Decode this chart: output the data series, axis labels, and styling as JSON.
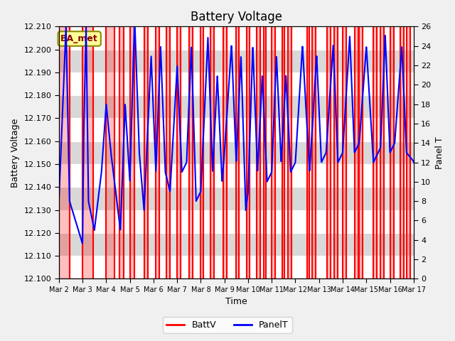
{
  "title": "Battery Voltage",
  "xlabel": "Time",
  "ylabel_left": "Battery Voltage",
  "ylabel_right": "Panel T",
  "ylim_left": [
    12.1,
    12.21
  ],
  "ylim_right": [
    0,
    26
  ],
  "yticks_left": [
    12.1,
    12.11,
    12.12,
    12.13,
    12.14,
    12.15,
    12.16,
    12.17,
    12.18,
    12.19,
    12.2,
    12.21
  ],
  "yticks_right": [
    0,
    2,
    4,
    6,
    8,
    10,
    12,
    14,
    16,
    18,
    20,
    22,
    24,
    26
  ],
  "xtick_labels": [
    "Mar 2",
    "Mar 3",
    "Mar 4",
    "Mar 5",
    "Mar 6",
    "Mar 7",
    "Mar 8",
    "Mar 9",
    "Mar 10",
    "Mar 11",
    "Mar 12",
    "Mar 13",
    "Mar 14",
    "Mar 15",
    "Mar 16",
    "Mar 17"
  ],
  "annotation_text": "BA_met",
  "annotation_color": "#8B0000",
  "annotation_bg": "#FFFF99",
  "batt_color": "#FF0000",
  "panel_color": "#0000FF",
  "bg_color": "#D8D8D8",
  "band_color": "#EAEAEA",
  "grid_color": "#FFFFFF",
  "legend_batt": "BattV",
  "legend_panel": "PanelT",
  "batt_high_intervals": [
    [
      0.0,
      0.45
    ],
    [
      1.0,
      1.45
    ],
    [
      2.0,
      2.35
    ],
    [
      2.55,
      2.75
    ],
    [
      3.0,
      3.2
    ],
    [
      3.6,
      3.75
    ],
    [
      4.1,
      4.25
    ],
    [
      4.55,
      4.7
    ],
    [
      5.0,
      5.15
    ],
    [
      5.5,
      5.65
    ],
    [
      6.0,
      6.1
    ],
    [
      6.4,
      6.55
    ],
    [
      6.95,
      7.1
    ],
    [
      7.5,
      7.6
    ],
    [
      7.95,
      8.05
    ],
    [
      8.35,
      8.5
    ],
    [
      8.65,
      8.75
    ],
    [
      9.0,
      9.15
    ],
    [
      9.45,
      9.55
    ],
    [
      9.7,
      9.85
    ],
    [
      10.5,
      10.6
    ],
    [
      10.7,
      10.85
    ],
    [
      11.35,
      11.5
    ],
    [
      11.65,
      11.8
    ],
    [
      12.0,
      12.15
    ],
    [
      12.5,
      12.65
    ],
    [
      12.7,
      12.85
    ],
    [
      13.3,
      13.45
    ],
    [
      13.6,
      13.75
    ],
    [
      14.0,
      14.15
    ],
    [
      14.45,
      14.6
    ],
    [
      14.7,
      14.85
    ]
  ]
}
